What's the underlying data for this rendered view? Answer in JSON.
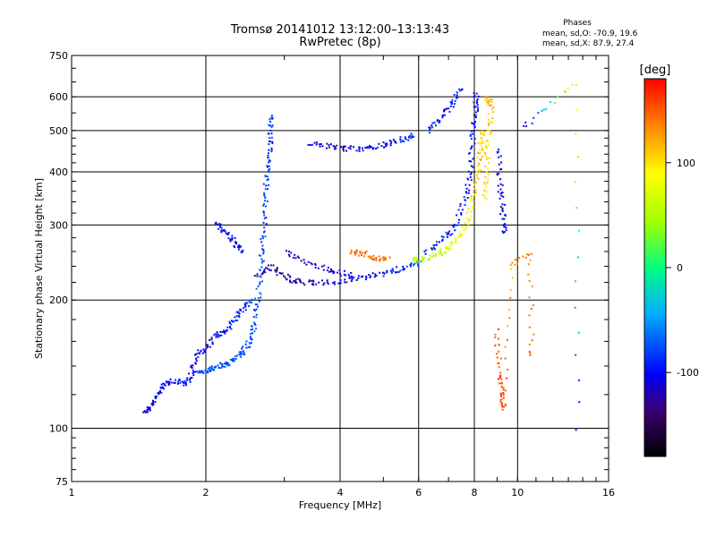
{
  "header": {
    "title": "Tromsø 20141012 13:12:00–13:13:43",
    "subtitle": "RwPretec (8p)"
  },
  "phases": {
    "title": "Phases",
    "o_label": "mean, sd,O:",
    "o_values": "-70.9, 19.6",
    "x_label": "mean, sd,X:",
    "x_values": "87.9, 27.4"
  },
  "colorbar": {
    "unit": "[deg]",
    "ticks": [
      "100",
      "0",
      "-100"
    ],
    "tick_values": [
      100,
      0,
      -100
    ],
    "range": [
      -180,
      180
    ]
  },
  "chart_data": {
    "type": "scatter",
    "xlabel": "Frequency [MHz]",
    "ylabel": "Stationary phase Virtual Height [km]",
    "xscale": "log",
    "yscale": "log",
    "xlim": [
      1,
      16
    ],
    "ylim": [
      75,
      750
    ],
    "xticks": [
      1,
      2,
      4,
      6,
      8,
      10,
      16
    ],
    "xtick_labels": [
      "1",
      "2",
      "4",
      "6",
      "8",
      "10",
      "16"
    ],
    "yticks": [
      75,
      100,
      200,
      300,
      400,
      500,
      600,
      750
    ],
    "ytick_labels": [
      "75",
      "100",
      "200",
      "300",
      "400",
      "500",
      "600",
      "750"
    ],
    "grid": true,
    "color_by": "phase [deg]",
    "traces": [
      {
        "points": [
          [
            1.45,
            110,
            -120
          ],
          [
            1.5,
            112,
            -110
          ],
          [
            1.55,
            120,
            -100
          ],
          [
            1.6,
            128,
            -95
          ],
          [
            1.7,
            130,
            -100
          ],
          [
            1.8,
            128,
            -90
          ],
          [
            1.85,
            135,
            -110
          ],
          [
            1.9,
            150,
            -100
          ],
          [
            2.0,
            155,
            -105
          ],
          [
            2.1,
            165,
            -95
          ],
          [
            2.2,
            170,
            -100
          ],
          [
            2.3,
            180,
            -90
          ],
          [
            2.4,
            190,
            -95
          ],
          [
            2.5,
            200,
            -80
          ]
        ]
      },
      {
        "points": [
          [
            1.9,
            135,
            -80
          ],
          [
            2.0,
            138,
            -75
          ],
          [
            2.1,
            140,
            -80
          ],
          [
            2.2,
            142,
            -70
          ],
          [
            2.3,
            145,
            -75
          ],
          [
            2.4,
            150,
            -80
          ],
          [
            2.5,
            160,
            -70
          ],
          [
            2.55,
            175,
            -75
          ],
          [
            2.6,
            200,
            -70
          ],
          [
            2.65,
            240,
            -75
          ],
          [
            2.68,
            280,
            -80
          ],
          [
            2.7,
            330,
            -85
          ],
          [
            2.72,
            380,
            -80
          ],
          [
            2.75,
            430,
            -85
          ],
          [
            2.78,
            480,
            -90
          ],
          [
            2.8,
            540,
            -75
          ]
        ]
      },
      {
        "points": [
          [
            2.6,
            230,
            -120
          ],
          [
            2.8,
            240,
            -125
          ],
          [
            3.0,
            228,
            -130
          ],
          [
            3.2,
            222,
            -125
          ],
          [
            3.5,
            220,
            -120
          ],
          [
            4.0,
            222,
            -110
          ],
          [
            4.5,
            228,
            -105
          ],
          [
            5.0,
            232,
            -100
          ],
          [
            5.5,
            238,
            -90
          ],
          [
            6.0,
            245,
            -75
          ]
        ]
      },
      {
        "points": [
          [
            3.4,
            470,
            -110
          ],
          [
            3.8,
            460,
            -115
          ],
          [
            4.2,
            455,
            -110
          ],
          [
            4.6,
            455,
            -105
          ],
          [
            5.0,
            465,
            -100
          ],
          [
            5.4,
            475,
            -95
          ],
          [
            5.8,
            490,
            -85
          ]
        ]
      },
      {
        "points": [
          [
            2.1,
            305,
            -100
          ],
          [
            2.2,
            290,
            -95
          ],
          [
            2.3,
            275,
            -105
          ],
          [
            2.4,
            262,
            -100
          ]
        ]
      },
      {
        "points": [
          [
            3.0,
            260,
            -120
          ],
          [
            3.4,
            245,
            -115
          ],
          [
            3.8,
            235,
            -110
          ],
          [
            4.2,
            230,
            -100
          ]
        ]
      },
      {
        "points": [
          [
            4.2,
            262,
            150
          ],
          [
            4.5,
            258,
            140
          ],
          [
            4.8,
            252,
            145
          ],
          [
            5.1,
            250,
            135
          ]
        ]
      },
      {
        "points": [
          [
            5.8,
            248,
            40
          ],
          [
            6.2,
            252,
            50
          ],
          [
            6.6,
            258,
            60
          ],
          [
            7.0,
            268,
            70
          ],
          [
            7.4,
            285,
            80
          ],
          [
            7.7,
            310,
            90
          ],
          [
            7.9,
            350,
            100
          ],
          [
            8.1,
            400,
            105
          ],
          [
            8.2,
            450,
            110
          ],
          [
            8.3,
            500,
            100
          ]
        ]
      },
      {
        "points": [
          [
            6.2,
            260,
            -100
          ],
          [
            6.8,
            280,
            -90
          ],
          [
            7.2,
            300,
            -100
          ],
          [
            7.6,
            350,
            -95
          ],
          [
            7.8,
            400,
            -100
          ],
          [
            7.9,
            480,
            -90
          ],
          [
            8.0,
            550,
            -95
          ],
          [
            8.05,
            610,
            -100
          ]
        ]
      },
      {
        "points": [
          [
            6.3,
            500,
            -90
          ],
          [
            6.7,
            540,
            -100
          ],
          [
            7.1,
            580,
            -95
          ],
          [
            7.4,
            620,
            -90
          ]
        ]
      },
      {
        "points": [
          [
            8.5,
            600,
            110
          ],
          [
            8.7,
            580,
            120
          ],
          [
            8.6,
            500,
            105
          ],
          [
            8.5,
            420,
            110
          ],
          [
            8.4,
            350,
            100
          ]
        ]
      },
      {
        "points": [
          [
            8.9,
            170,
            150
          ],
          [
            9.1,
            135,
            160
          ],
          [
            9.2,
            120,
            155
          ],
          [
            9.3,
            112,
            150
          ],
          [
            9.6,
            240,
            120
          ],
          [
            10.6,
            260,
            130
          ],
          [
            10.7,
            150,
            145
          ]
        ]
      },
      {
        "points": [
          [
            9.0,
            460,
            -100
          ],
          [
            9.1,
            380,
            -105
          ],
          [
            9.2,
            330,
            -110
          ],
          [
            9.3,
            290,
            -95
          ]
        ]
      },
      {
        "points": [
          [
            13.5,
            100,
            -120
          ],
          [
            13.6,
            650,
            100
          ],
          [
            10.4,
            520,
            -110
          ]
        ]
      }
    ]
  }
}
